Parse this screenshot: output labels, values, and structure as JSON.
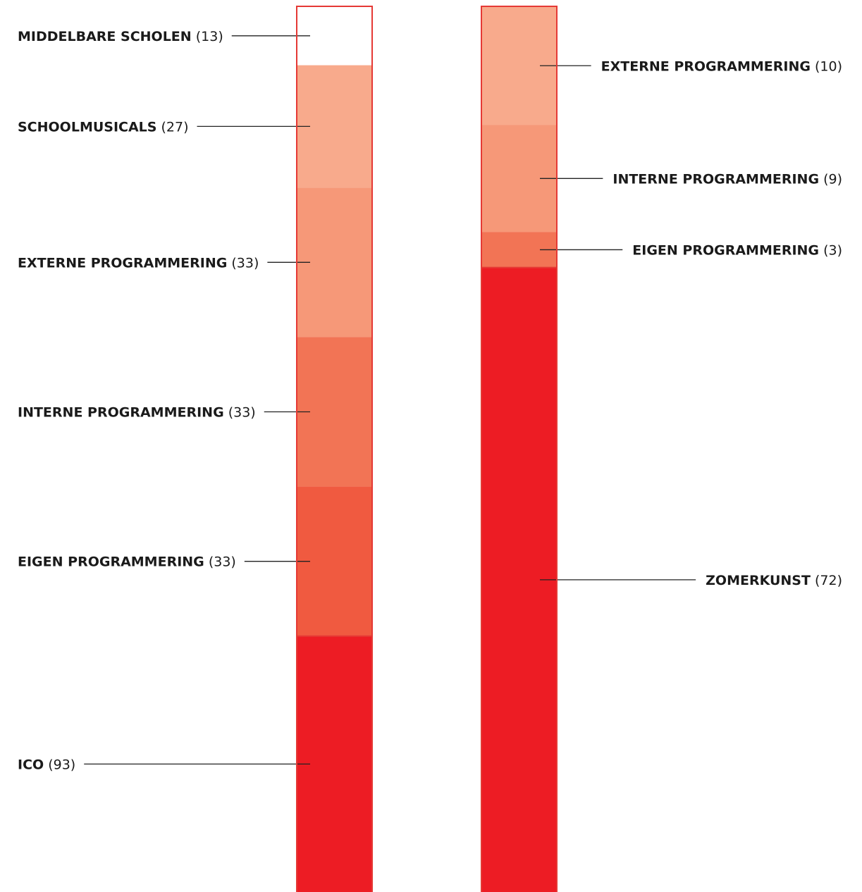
{
  "chart_data": [
    {
      "type": "stacked-bar",
      "title": "",
      "segments": [
        {
          "name": "MIDDELBARE SCHOLEN",
          "value": 13,
          "value_text": "(13)",
          "color": "#ffffff"
        },
        {
          "name": "SCHOOLMUSICALS",
          "value": 27,
          "value_text": "(27)",
          "color": "#f8aa8c"
        },
        {
          "name": "EXTERNE PROGRAMMERING",
          "value": 33,
          "value_text": "(33)",
          "color": "#f69878"
        },
        {
          "name": "INTERNE PROGRAMMERING",
          "value": 33,
          "value_text": "(33)",
          "color": "#f27455"
        },
        {
          "name": "EIGEN PROGRAMMERING",
          "value": 33,
          "value_text": "(33)",
          "color": "#f05a40"
        },
        {
          "name": "ICO",
          "value": 93,
          "value_text": "(93)",
          "color": "#ed1c24"
        }
      ]
    },
    {
      "type": "stacked-bar",
      "title": "",
      "segments": [
        {
          "name": "EXTERNE PROGRAMMERING",
          "value": 10,
          "value_text": "(10)",
          "color": "#f8aa8c"
        },
        {
          "name": "INTERNE PROGRAMMERING",
          "value": 9,
          "value_text": "(9)",
          "color": "#f69878"
        },
        {
          "name": "EIGEN PROGRAMMERING",
          "value": 3,
          "value_text": "(3)",
          "color": "#f27455"
        },
        {
          "name": "ZOMERKUNST",
          "value": 72,
          "value_text": "(72)",
          "color": "#ed1c24"
        }
      ]
    }
  ],
  "colors": {
    "outline": "#e53935",
    "leader_line": "#222222",
    "label_text": "#1a1a1a"
  }
}
